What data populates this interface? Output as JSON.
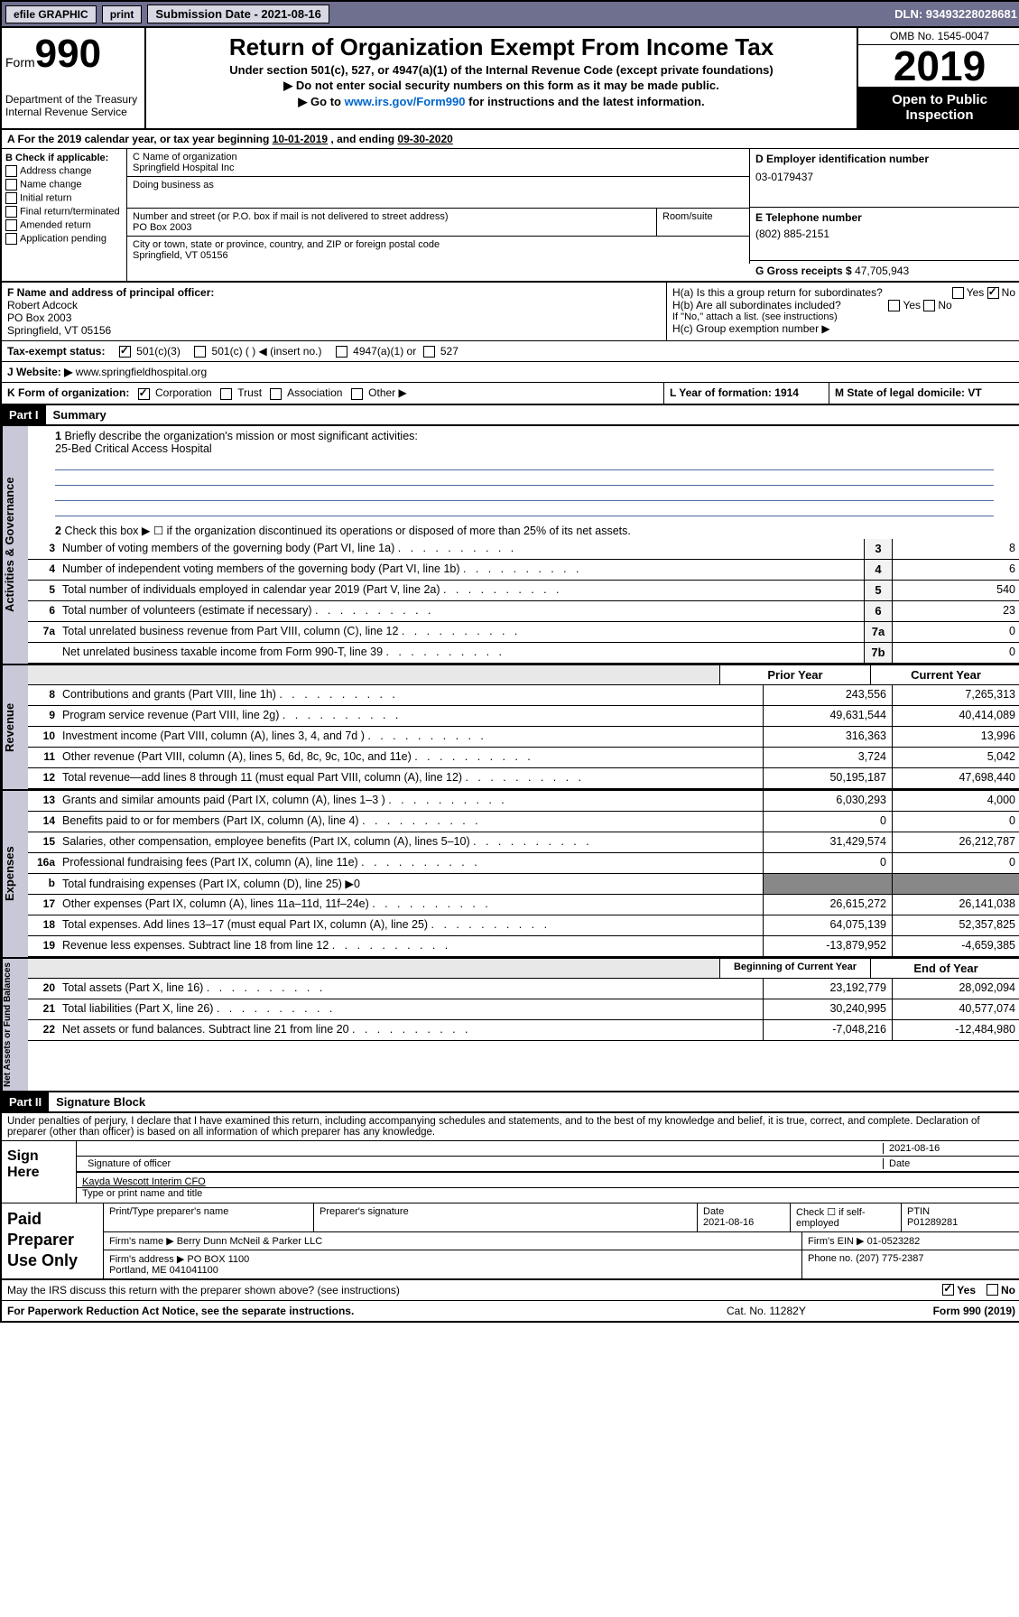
{
  "topbar": {
    "efile": "efile GRAPHIC",
    "print": "print",
    "sub_label": "Submission Date - 2021-08-16",
    "dln": "DLN: 93493228028681"
  },
  "hdr": {
    "form": "Form",
    "num": "990",
    "title": "Return of Organization Exempt From Income Tax",
    "sub1": "Under section 501(c), 527, or 4947(a)(1) of the Internal Revenue Code (except private foundations)",
    "sub2": "▶ Do not enter social security numbers on this form as it may be made public.",
    "sub3_pre": "▶ Go to ",
    "sub3_link": "www.irs.gov/Form990",
    "sub3_post": " for instructions and the latest information.",
    "dept": "Department of the Treasury\nInternal Revenue Service",
    "omb": "OMB No. 1545-0047",
    "year": "2019",
    "pub": "Open to Public Inspection"
  },
  "a": {
    "pre": "A For the 2019 calendar year, or tax year beginning ",
    "beg": "10-01-2019",
    "mid": " , and ending ",
    "end": "09-30-2020"
  },
  "b": {
    "label": "B Check if applicable:",
    "items": [
      "Address change",
      "Name change",
      "Initial return",
      "Final return/terminated",
      "Amended return",
      "Application pending"
    ]
  },
  "c": {
    "name_lbl": "C Name of organization",
    "name": "Springfield Hospital Inc",
    "dba_lbl": "Doing business as",
    "dba": "",
    "addr_lbl": "Number and street (or P.O. box if mail is not delivered to street address)",
    "room_lbl": "Room/suite",
    "addr": "PO Box 2003",
    "city_lbl": "City or town, state or province, country, and ZIP or foreign postal code",
    "city": "Springfield, VT  05156"
  },
  "d": {
    "lbl": "D Employer identification number",
    "val": "03-0179437"
  },
  "e": {
    "lbl": "E Telephone number",
    "val": "(802) 885-2151"
  },
  "g": {
    "lbl": "G Gross receipts $",
    "val": "47,705,943"
  },
  "f": {
    "lbl": "F  Name and address of principal officer:",
    "name": "Robert Adcock",
    "addr": "PO Box 2003\nSpringfield, VT  05156"
  },
  "h": {
    "a": "H(a)  Is this a group return for subordinates?",
    "a_no": true,
    "b": "H(b)  Are all subordinates included?",
    "b_note": "If \"No,\" attach a list. (see instructions)",
    "c": "H(c)  Group exemption number ▶"
  },
  "i": {
    "lbl": "Tax-exempt status:",
    "c3": "501(c)(3)",
    "c": "501(c) (   ) ◀ (insert no.)",
    "a1": "4947(a)(1) or",
    "s527": "527"
  },
  "j": {
    "lbl": "Website: ▶",
    "val": "www.springfieldhospital.org"
  },
  "k": {
    "lbl": "K Form of organization:",
    "corp": "Corporation",
    "trust": "Trust",
    "assoc": "Association",
    "other": "Other ▶"
  },
  "l": {
    "lbl": "L Year of formation:",
    "val": "1914"
  },
  "m": {
    "lbl": "M State of legal domicile:",
    "val": "VT"
  },
  "part1": {
    "num": "Part I",
    "title": "Summary"
  },
  "summary": {
    "q1": "Briefly describe the organization's mission or most significant activities:",
    "mission": "25-Bed Critical Access Hospital",
    "q2": "Check this box ▶ ☐  if the organization discontinued its operations or disposed of more than 25% of its net assets.",
    "lines": [
      {
        "n": "3",
        "t": "Number of voting members of the governing body (Part VI, line 1a)",
        "box": "3",
        "v": "8"
      },
      {
        "n": "4",
        "t": "Number of independent voting members of the governing body (Part VI, line 1b)",
        "box": "4",
        "v": "6"
      },
      {
        "n": "5",
        "t": "Total number of individuals employed in calendar year 2019 (Part V, line 2a)",
        "box": "5",
        "v": "540"
      },
      {
        "n": "6",
        "t": "Total number of volunteers (estimate if necessary)",
        "box": "6",
        "v": "23"
      },
      {
        "n": "7a",
        "t": "Total unrelated business revenue from Part VIII, column (C), line 12",
        "box": "7a",
        "v": "0"
      },
      {
        "n": "",
        "t": "Net unrelated business taxable income from Form 990-T, line 39",
        "box": "7b",
        "v": "0"
      }
    ],
    "hdr_prior": "Prior Year",
    "hdr_curr": "Current Year",
    "rev": [
      {
        "n": "8",
        "t": "Contributions and grants (Part VIII, line 1h)",
        "p": "243,556",
        "c": "7,265,313"
      },
      {
        "n": "9",
        "t": "Program service revenue (Part VIII, line 2g)",
        "p": "49,631,544",
        "c": "40,414,089"
      },
      {
        "n": "10",
        "t": "Investment income (Part VIII, column (A), lines 3, 4, and 7d )",
        "p": "316,363",
        "c": "13,996"
      },
      {
        "n": "11",
        "t": "Other revenue (Part VIII, column (A), lines 5, 6d, 8c, 9c, 10c, and 11e)",
        "p": "3,724",
        "c": "5,042"
      },
      {
        "n": "12",
        "t": "Total revenue—add lines 8 through 11 (must equal Part VIII, column (A), line 12)",
        "p": "50,195,187",
        "c": "47,698,440"
      }
    ],
    "exp": [
      {
        "n": "13",
        "t": "Grants and similar amounts paid (Part IX, column (A), lines 1–3 )",
        "p": "6,030,293",
        "c": "4,000"
      },
      {
        "n": "14",
        "t": "Benefits paid to or for members (Part IX, column (A), line 4)",
        "p": "0",
        "c": "0"
      },
      {
        "n": "15",
        "t": "Salaries, other compensation, employee benefits (Part IX, column (A), lines 5–10)",
        "p": "31,429,574",
        "c": "26,212,787"
      },
      {
        "n": "16a",
        "t": "Professional fundraising fees (Part IX, column (A), line 11e)",
        "p": "0",
        "c": "0"
      },
      {
        "n": "b",
        "t": "Total fundraising expenses (Part IX, column (D), line 25) ▶0",
        "p": "",
        "c": ""
      },
      {
        "n": "17",
        "t": "Other expenses (Part IX, column (A), lines 11a–11d, 11f–24e)",
        "p": "26,615,272",
        "c": "26,141,038"
      },
      {
        "n": "18",
        "t": "Total expenses. Add lines 13–17 (must equal Part IX, column (A), line 25)",
        "p": "64,075,139",
        "c": "52,357,825"
      },
      {
        "n": "19",
        "t": "Revenue less expenses. Subtract line 18 from line 12",
        "p": "-13,879,952",
        "c": "-4,659,385"
      }
    ],
    "hdr_beg": "Beginning of Current Year",
    "hdr_end": "End of Year",
    "net": [
      {
        "n": "20",
        "t": "Total assets (Part X, line 16)",
        "p": "23,192,779",
        "c": "28,092,094"
      },
      {
        "n": "21",
        "t": "Total liabilities (Part X, line 26)",
        "p": "30,240,995",
        "c": "40,577,074"
      },
      {
        "n": "22",
        "t": "Net assets or fund balances. Subtract line 21 from line 20",
        "p": "-7,048,216",
        "c": "-12,484,980"
      }
    ],
    "side_gov": "Activities & Governance",
    "side_rev": "Revenue",
    "side_exp": "Expenses",
    "side_net": "Net Assets or Fund Balances"
  },
  "part2": {
    "num": "Part II",
    "title": "Signature Block",
    "perjury": "Under penalties of perjury, I declare that I have examined this return, including accompanying schedules and statements, and to the best of my knowledge and belief, it is true, correct, and complete. Declaration of preparer (other than officer) is based on all information of which preparer has any knowledge."
  },
  "sign": {
    "here": "Sign Here",
    "sig_lbl": "Signature of officer",
    "date_lbl": "Date",
    "date": "2021-08-16",
    "name": "Kayda Wescott  Interim CFO",
    "name_lbl": "Type or print name and title"
  },
  "paid": {
    "title": "Paid Preparer Use Only",
    "col1": "Print/Type preparer's name",
    "col2": "Preparer's signature",
    "col3": "Date",
    "col3v": "2021-08-16",
    "col4": "Check ☐ if self-employed",
    "col5": "PTIN",
    "ptin": "P01289281",
    "firm_lbl": "Firm's name    ▶",
    "firm": "Berry Dunn McNeil & Parker LLC",
    "ein_lbl": "Firm's EIN ▶",
    "ein": "01-0523282",
    "addr_lbl": "Firm's address ▶",
    "addr": "PO BOX 1100\nPortland, ME  041041100",
    "phone_lbl": "Phone no.",
    "phone": "(207) 775-2387"
  },
  "discuss": {
    "q": "May the IRS discuss this return with the preparer shown above? (see instructions)",
    "yes": "Yes",
    "no": "No"
  },
  "foot": {
    "l": "For Paperwork Reduction Act Notice, see the separate instructions.",
    "c": "Cat. No. 11282Y",
    "r": "Form 990 (2019)"
  }
}
